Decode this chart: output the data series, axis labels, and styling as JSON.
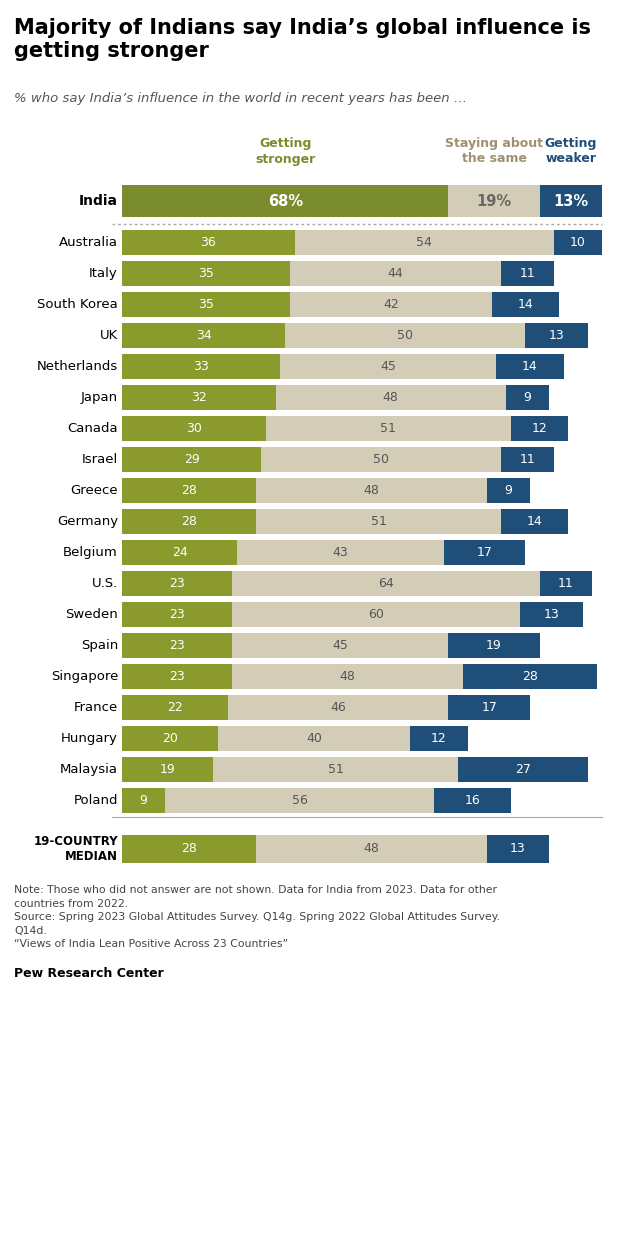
{
  "title": "Majority of Indians say India’s global influence is\ngetting stronger",
  "subtitle": "% who say India’s influence in the world in recent years has been …",
  "countries": [
    "India",
    "Australia",
    "Italy",
    "South Korea",
    "UK",
    "Netherlands",
    "Japan",
    "Canada",
    "Israel",
    "Greece",
    "Germany",
    "Belgium",
    "U.S.",
    "Sweden",
    "Spain",
    "Singapore",
    "France",
    "Hungary",
    "Malaysia",
    "Poland"
  ],
  "getting_stronger": [
    68,
    36,
    35,
    35,
    34,
    33,
    32,
    30,
    29,
    28,
    28,
    24,
    23,
    23,
    23,
    23,
    22,
    20,
    19,
    9
  ],
  "staying_same": [
    19,
    54,
    44,
    42,
    50,
    45,
    48,
    51,
    50,
    48,
    51,
    43,
    64,
    60,
    45,
    48,
    46,
    40,
    51,
    56
  ],
  "getting_weaker": [
    13,
    10,
    11,
    14,
    13,
    14,
    9,
    12,
    11,
    9,
    14,
    17,
    11,
    13,
    19,
    28,
    17,
    12,
    27,
    16
  ],
  "median_label": "19-COUNTRY\nMEDIAN",
  "median_stronger": 28,
  "median_same": 48,
  "median_weaker": 13,
  "color_stronger": "#8a9a2c",
  "color_india_stronger": "#7a8c2e",
  "color_same": "#d3cdb8",
  "color_weaker": "#1f4e79",
  "header_stronger_color": "#7a8c2e",
  "header_same_color": "#a09070",
  "header_weaker_color": "#1f4e79",
  "note_text": "Note: Those who did not answer are not shown. Data for India from 2023. Data for other\ncountries from 2022.\nSource: Spring 2023 Global Attitudes Survey. Q14g. Spring 2022 Global Attitudes Survey.\nQ14d.\n“Views of India Lean Positive Across 23 Countries”",
  "source_text": "Pew Research Center",
  "background_color": "#ffffff"
}
